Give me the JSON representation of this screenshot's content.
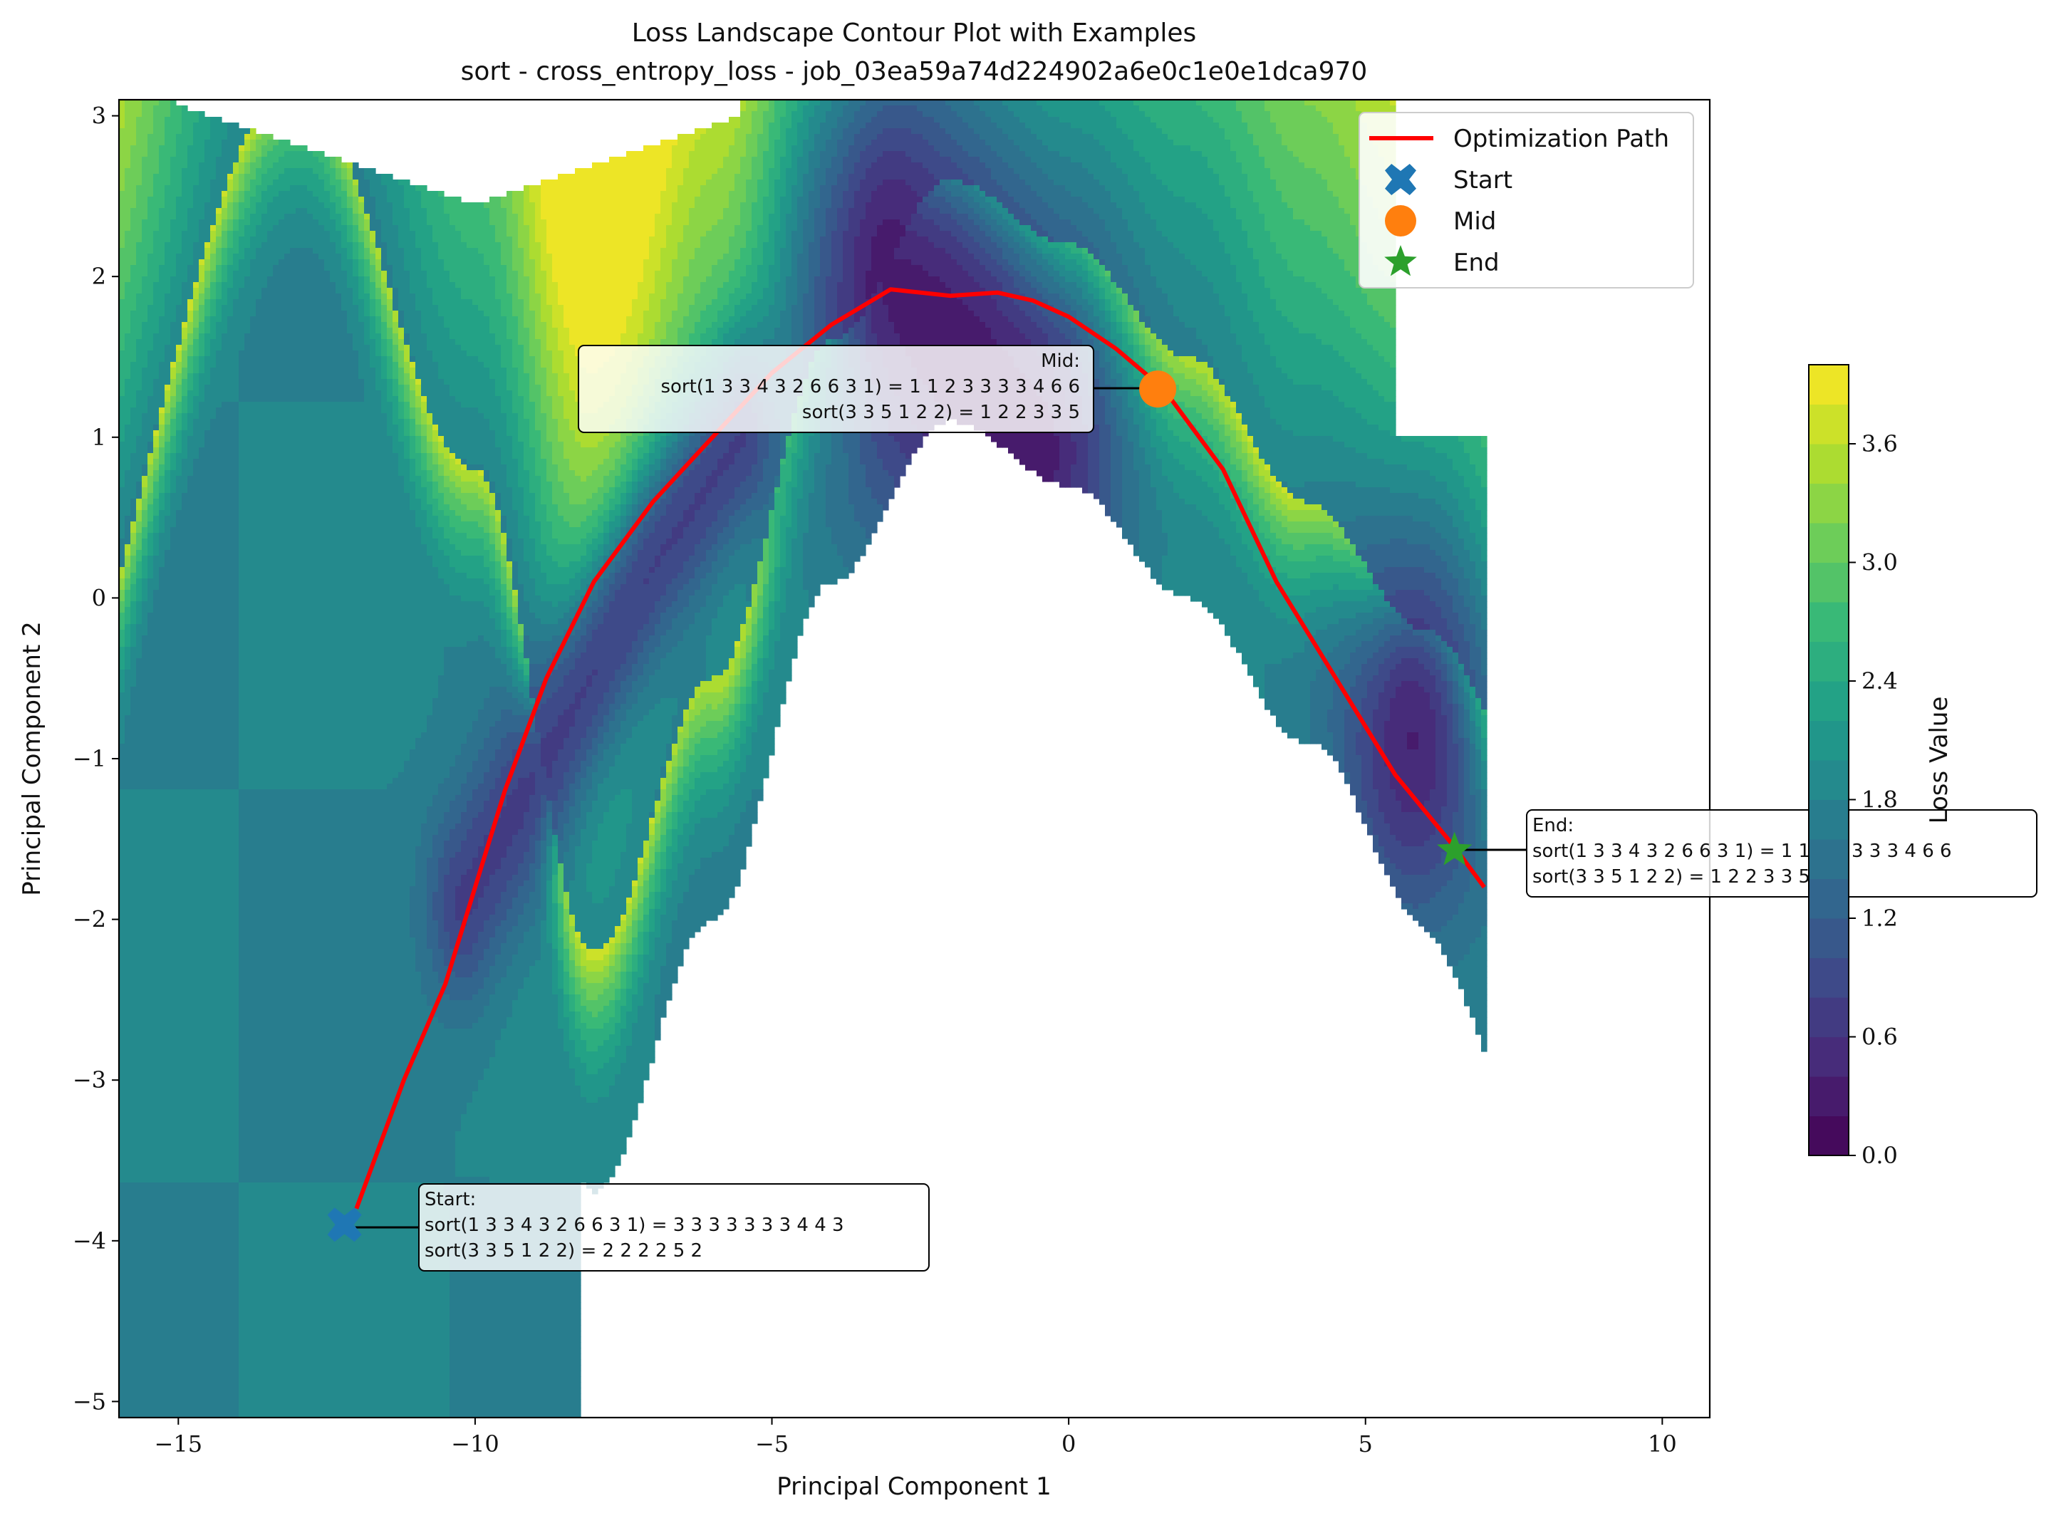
{
  "chart_data": {
    "type": "contour",
    "title": "Loss Landscape Contour Plot with Examples",
    "subtitle": "sort - cross_entropy_loss - job_03ea59a74d224902a6e0c1e0e1dca970",
    "xlabel": "Principal Component 1",
    "ylabel": "Principal Component 2",
    "xlim": [
      -16,
      10.8
    ],
    "ylim": [
      -5.1,
      3.1
    ],
    "xticks": [
      -15,
      -10,
      -5,
      0,
      5,
      10
    ],
    "yticks": [
      -5,
      -4,
      -3,
      -2,
      -1,
      0,
      1,
      2,
      3
    ],
    "xtick_labels": [
      "−15",
      "−10",
      "−5",
      "0",
      "5",
      "10"
    ],
    "ytick_labels": [
      "−5",
      "−4",
      "−3",
      "−2",
      "−1",
      "0",
      "1",
      "2",
      "3"
    ],
    "colorbar": {
      "label": "Loss Value",
      "range": [
        0.0,
        4.0
      ],
      "ticks": [
        0.0,
        0.6,
        1.2,
        1.8,
        2.4,
        3.0,
        3.6
      ],
      "tick_labels": [
        "0.0",
        "0.6",
        "1.2",
        "1.8",
        "2.4",
        "3.0",
        "3.6"
      ],
      "colormap": "viridis"
    },
    "legend": {
      "placement": "top-right",
      "entries": [
        {
          "label": "Optimization Path",
          "marker": "line",
          "color": "#ff0000"
        },
        {
          "label": "Start",
          "marker": "X",
          "color": "#1f77b4"
        },
        {
          "label": "Mid",
          "marker": "circle",
          "color": "#ff7f0e"
        },
        {
          "label": "End",
          "marker": "star",
          "color": "#2ca02c"
        }
      ]
    },
    "optimization_path": {
      "color": "#ff0000",
      "x": [
        -12.0,
        -11.2,
        -10.5,
        -10.0,
        -9.5,
        -8.8,
        -8.0,
        -7.0,
        -6.0,
        -5.0,
        -4.0,
        -3.0,
        -2.5,
        -2.0,
        -1.2,
        -0.6,
        0.0,
        0.8,
        1.6,
        2.6,
        3.5,
        4.5,
        5.5,
        6.5,
        7.0
      ],
      "y": [
        -3.8,
        -3.0,
        -2.4,
        -1.8,
        -1.2,
        -0.5,
        0.1,
        0.6,
        1.0,
        1.4,
        1.7,
        1.92,
        1.9,
        1.88,
        1.9,
        1.85,
        1.75,
        1.55,
        1.3,
        0.8,
        0.1,
        -0.5,
        -1.1,
        -1.55,
        -1.8
      ]
    },
    "markers": [
      {
        "name": "Start",
        "x": -12.2,
        "y": -3.9,
        "color": "#1f77b4",
        "shape": "X"
      },
      {
        "name": "Mid",
        "x": 1.5,
        "y": 1.3,
        "color": "#ff7f0e",
        "shape": "circle"
      },
      {
        "name": "End",
        "x": 6.5,
        "y": -1.57,
        "color": "#2ca02c",
        "shape": "star"
      }
    ],
    "annotations": [
      {
        "name": "start",
        "header": "Start:",
        "line1": "sort(1 3 3 4 3 2 6 6 3 1) = 3 3 3 3 3 3 3 4 4 3",
        "line2": "sort(3 3 5 1 2 2) = 2 2 2 2 5 2",
        "align": "left"
      },
      {
        "name": "mid",
        "header": "Mid:",
        "line1": "sort(1 3 3 4 3 2 6 6 3 1) = 1 1 2 3 3 3 3 4 6 6",
        "line2": "sort(3 3 5 1 2 2) = 1 2 2 3 3 5",
        "align": "right"
      },
      {
        "name": "end",
        "header": "End:",
        "line1": "sort(1 3 3 4 3 2 6 6 3 1) = 1 1 2 3 3 3 3 4 6 6",
        "line2": "sort(3 3 5 1 2 2) = 1 2 2 3 3 5",
        "align": "left"
      }
    ],
    "landscape": {
      "valleys": [
        {
          "x": [
            -3.0,
            -1.8,
            -0.6
          ],
          "y": [
            2.0,
            1.5,
            0.9
          ],
          "depth": 0.2
        },
        {
          "x": [
            5.8
          ],
          "y": [
            -0.85
          ],
          "depth": 0.3
        },
        {
          "x": [
            -10.2,
            -8.5,
            -7.0,
            -5.5
          ],
          "y": [
            -1.9,
            -0.8,
            0.2,
            1.0
          ],
          "depth": 0.7
        }
      ],
      "plateau_level": 1.8,
      "ridge_level": 4.0
    }
  }
}
